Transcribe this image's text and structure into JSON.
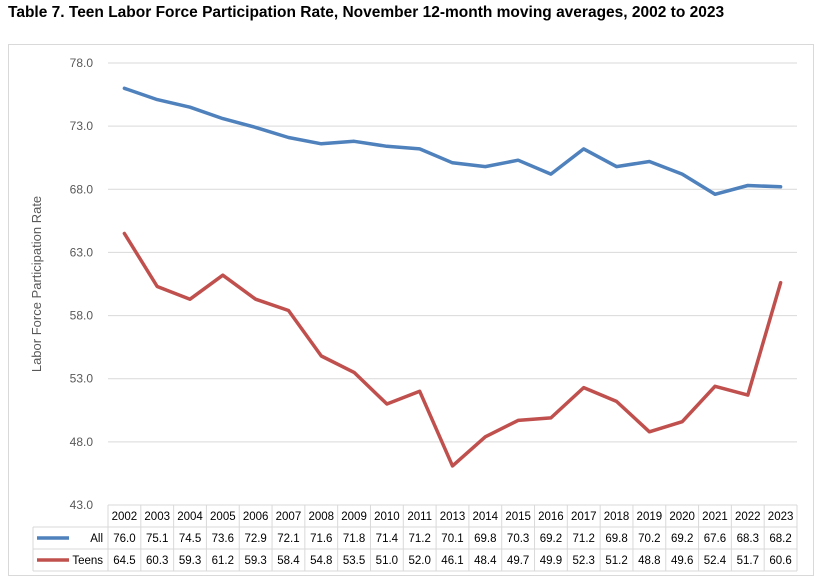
{
  "title": "Table 7. Teen Labor Force Participation Rate, November 12-month moving averages, 2002 to 2023",
  "chart_data": {
    "type": "line",
    "title": "",
    "xlabel": "",
    "ylabel": "Labor Force Participation Rate",
    "ylim": [
      43.0,
      78.0
    ],
    "yticks": [
      "43.0",
      "48.0",
      "53.0",
      "58.0",
      "63.0",
      "68.0",
      "73.0",
      "78.0"
    ],
    "grid": true,
    "legend": "data-table",
    "categories": [
      "2002",
      "2003",
      "2004",
      "2005",
      "2006",
      "2007",
      "2008",
      "2009",
      "2010",
      "2011",
      "2013",
      "2014",
      "2015",
      "2016",
      "2017",
      "2018",
      "2019",
      "2020",
      "2021",
      "2022",
      "2023"
    ],
    "series": [
      {
        "name": "All",
        "color": "#4f81bd",
        "values": [
          76.0,
          75.1,
          74.5,
          73.6,
          72.9,
          72.1,
          71.6,
          71.8,
          71.4,
          71.2,
          70.1,
          69.8,
          70.3,
          69.2,
          71.2,
          69.8,
          70.2,
          69.2,
          67.6,
          68.3,
          68.2
        ],
        "labels": [
          "76.0",
          "75.1",
          "74.5",
          "73.6",
          "72.9",
          "72.1",
          "71.6",
          "71.8",
          "71.4",
          "71.2",
          "70.1",
          "69.8",
          "70.3",
          "69.2",
          "71.2",
          "69.8",
          "70.2",
          "69.2",
          "67.6",
          "68.3",
          "68.2"
        ]
      },
      {
        "name": "Teens",
        "color": "#c0504d",
        "values": [
          64.5,
          60.3,
          59.3,
          61.2,
          59.3,
          58.4,
          54.8,
          53.5,
          51.0,
          52.0,
          46.1,
          48.4,
          49.7,
          49.9,
          52.3,
          51.2,
          48.8,
          49.6,
          52.4,
          51.7,
          60.6
        ],
        "labels": [
          "64.5",
          "60.3",
          "59.3",
          "61.2",
          "59.3",
          "58.4",
          "54.8",
          "53.5",
          "51.0",
          "52.0",
          "46.1",
          "48.4",
          "49.7",
          "49.9",
          "52.3",
          "51.2",
          "48.8",
          "49.6",
          "52.4",
          "51.7",
          "60.6"
        ]
      }
    ]
  }
}
